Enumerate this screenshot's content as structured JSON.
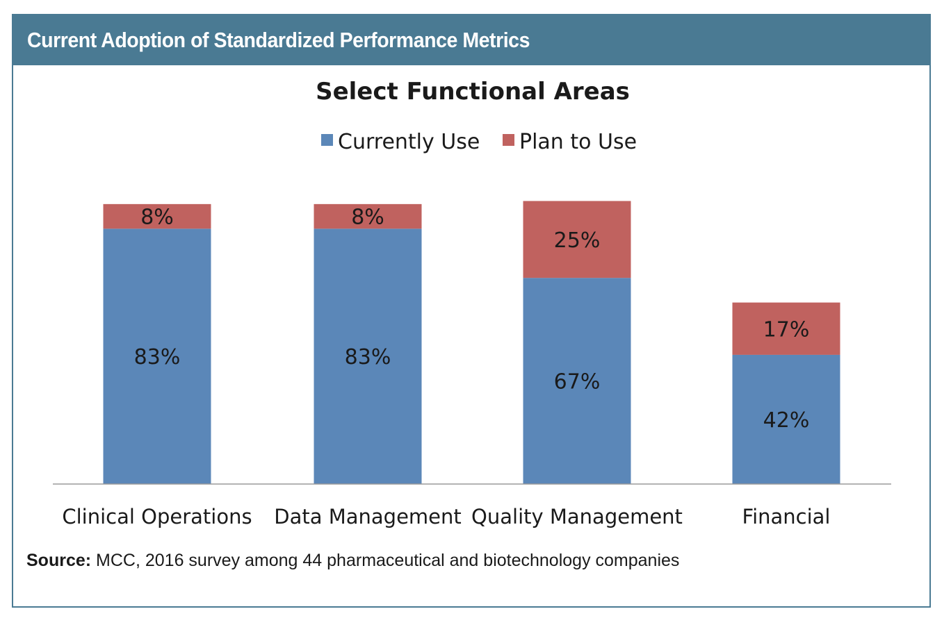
{
  "header": {
    "title": "Current Adoption of Standardized Performance Metrics"
  },
  "source": {
    "label": "Source:",
    "text": "MCC, 2016 survey among 44 pharmaceutical and biotechnology companies"
  },
  "colors": {
    "header_bg": "#4a7a93",
    "currently_use": "#5b87b8",
    "plan_to_use": "#c0625f"
  },
  "chart_data": {
    "type": "bar",
    "stacked": true,
    "title": "Select Functional Areas",
    "categories": [
      "Clinical Operations",
      "Data Management",
      "Quality Management",
      "Financial"
    ],
    "series": [
      {
        "name": "Currently Use",
        "values": [
          83,
          83,
          67,
          42
        ],
        "labels": [
          "83%",
          "83%",
          "67%",
          "42%"
        ]
      },
      {
        "name": "Plan to Use",
        "values": [
          8,
          8,
          25,
          17
        ],
        "labels": [
          "8%",
          "8%",
          "25%",
          "17%"
        ]
      }
    ],
    "unit": "%",
    "ylim": [
      0,
      100
    ],
    "grid": false,
    "legend": "top-center"
  }
}
